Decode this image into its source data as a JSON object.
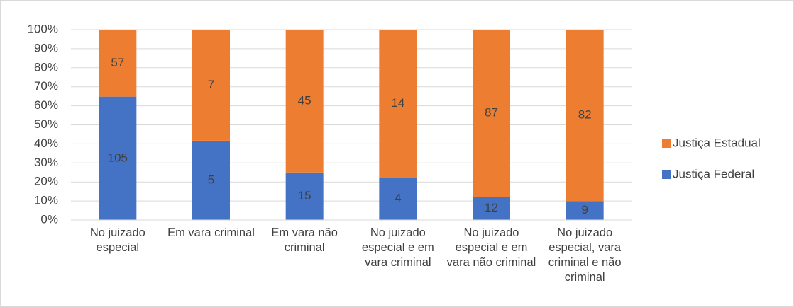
{
  "chart_data": {
    "type": "bar",
    "stacking": "percent",
    "categories": [
      "No juizado especial",
      "Em vara criminal",
      "Em vara não criminal",
      "No juizado especial e em vara criminal",
      "No juizado especial e em vara não criminal",
      "No juizado especial, vara criminal e não criminal"
    ],
    "series": [
      {
        "name": "Justiça Federal",
        "color": "#4472c4",
        "values": [
          105,
          5,
          15,
          4,
          12,
          9
        ]
      },
      {
        "name": "Justiça Estadual",
        "color": "#ed7d31",
        "values": [
          57,
          7,
          45,
          14,
          87,
          82
        ]
      }
    ],
    "ylim": [
      0,
      100
    ],
    "yticks": [
      {
        "value": 0,
        "label": "0%"
      },
      {
        "value": 10,
        "label": "10%"
      },
      {
        "value": 20,
        "label": "20%"
      },
      {
        "value": 30,
        "label": "30%"
      },
      {
        "value": 40,
        "label": "40%"
      },
      {
        "value": 50,
        "label": "50%"
      },
      {
        "value": 60,
        "label": "60%"
      },
      {
        "value": 70,
        "label": "70%"
      },
      {
        "value": 80,
        "label": "80%"
      },
      {
        "value": 90,
        "label": "90%"
      },
      {
        "value": 100,
        "label": "100%"
      }
    ],
    "grid": true,
    "legend": "right"
  }
}
